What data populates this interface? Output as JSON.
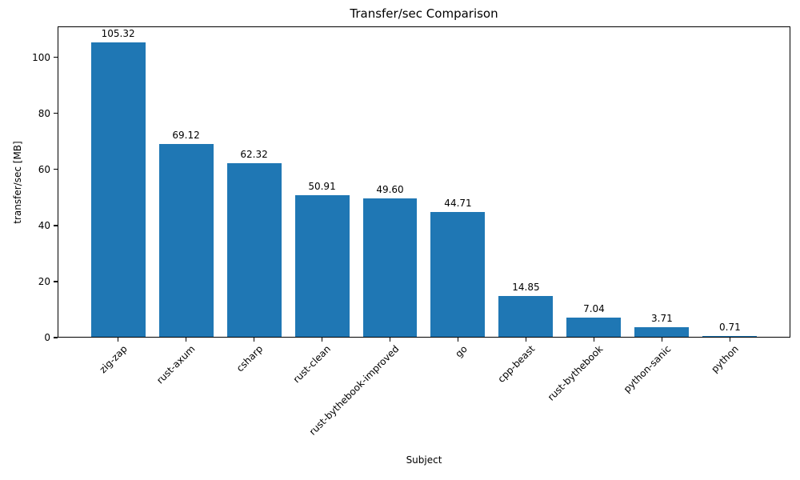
{
  "figure": {
    "background": "#ffffff",
    "text_color": "#000000"
  },
  "chart_data": {
    "type": "bar",
    "title": "Transfer/sec Comparison",
    "xlabel": "Subject",
    "ylabel": "transfer/sec [MB]",
    "categories": [
      "zig-zap",
      "rust-axum",
      "csharp",
      "rust-clean",
      "rust-bythebook-improved",
      "go",
      "cpp-beast",
      "rust-bythebook",
      "python-sanic",
      "python"
    ],
    "values": [
      105.32,
      69.12,
      62.32,
      50.91,
      49.6,
      44.71,
      14.85,
      7.04,
      3.71,
      0.71
    ],
    "value_labels": [
      "105.32",
      "69.12",
      "62.32",
      "50.91",
      "49.60",
      "44.71",
      "14.85",
      "7.04",
      "3.71",
      "0.71"
    ],
    "yticks": [
      0,
      20,
      40,
      60,
      80,
      100
    ],
    "ylim": [
      0,
      111
    ],
    "bar_color": "#1f77b4",
    "xtick_rotation_deg": 45,
    "grid": false,
    "legend_position": "none"
  }
}
